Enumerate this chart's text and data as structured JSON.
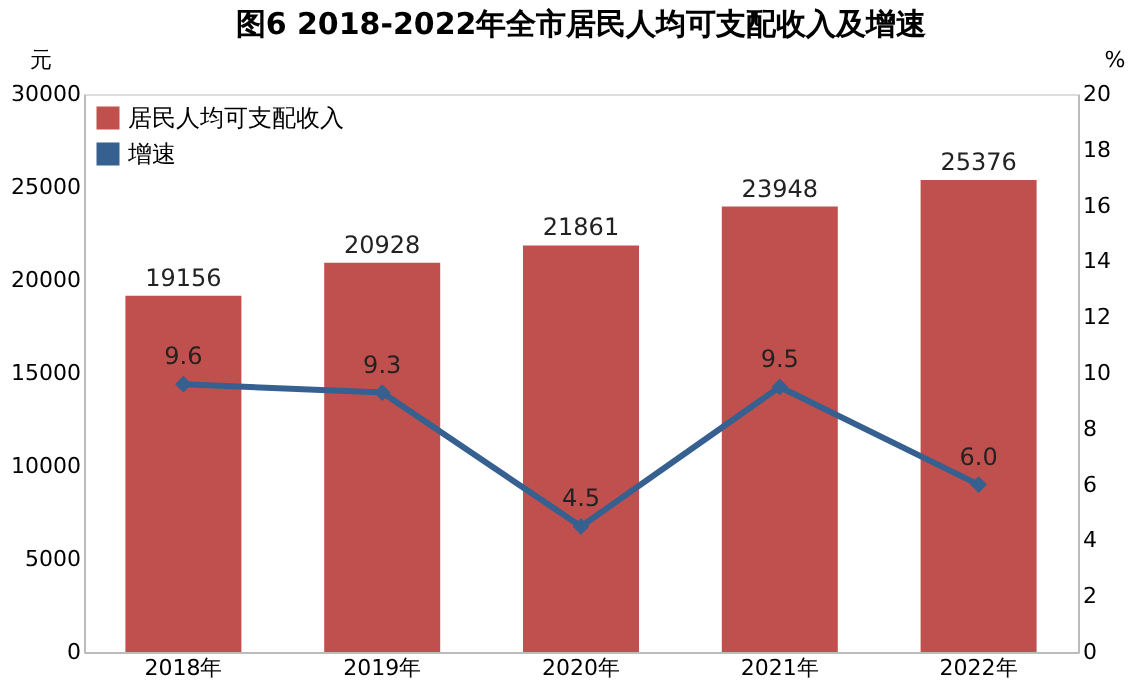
{
  "chart_data": {
    "type": "bar",
    "title": "图6  2018-2022年全市居民人均可支配收入及增速",
    "ylabel": "元",
    "y2label": "%",
    "categories": [
      "2018年",
      "2019年",
      "2020年",
      "2021年",
      "2022年"
    ],
    "series": [
      {
        "name": "居民人均可支配收入",
        "color": "#c0504d",
        "values": [
          19156,
          20928,
          21861,
          23948,
          25376
        ]
      },
      {
        "name": "增速",
        "type": "line",
        "axis": "y2",
        "color": "#35608f",
        "values": [
          9.6,
          9.3,
          4.5,
          9.5,
          6.0
        ],
        "value_labels": [
          "9.6",
          "9.3",
          "4.5",
          "9.5",
          "6.0"
        ],
        "marker": "diamond",
        "line_style": "solid"
      }
    ],
    "ylim": [
      0,
      30000
    ],
    "yticks": [
      0,
      5000,
      10000,
      15000,
      20000,
      25000,
      30000
    ],
    "y2lim": [
      0,
      20
    ],
    "y2ticks": [
      0,
      2,
      4,
      6,
      8,
      10,
      12,
      14,
      16,
      18,
      20
    ],
    "data_labels": true,
    "grid": false,
    "legend": "top left"
  }
}
